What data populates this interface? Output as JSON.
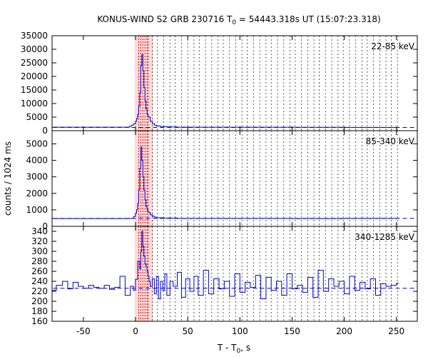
{
  "chart_data": {
    "type": "line",
    "title": {
      "prefix": "KONUS-WIND S2 GRB 230716 T",
      "sub": "0",
      "suffix": " = 54443.318s UT (15:07:23.318)"
    },
    "xlabel": {
      "prefix": "T - T",
      "sub": "0",
      "suffix": ", s"
    },
    "ylabel": "counts / 1024 ms",
    "xlim": [
      -80,
      270
    ],
    "xticks": [
      -50,
      0,
      50,
      100,
      150,
      200,
      250
    ],
    "xtick_labels": [
      "-50",
      "0",
      "50",
      "100",
      "150",
      "200",
      "250"
    ],
    "highlight": {
      "start": -1,
      "end": 17,
      "color": "#f9dddd"
    },
    "red_markers": [
      3,
      5,
      7,
      9,
      11,
      12
    ],
    "grid_lines": [
      16,
      21,
      27,
      33,
      38,
      44,
      50,
      56,
      61,
      67,
      73,
      79,
      84,
      90,
      96,
      102,
      107,
      113,
      119,
      125,
      130,
      136,
      142,
      148,
      153,
      159,
      165,
      171,
      176,
      182,
      188,
      194,
      199,
      205,
      211,
      217,
      222,
      228,
      234,
      240,
      245,
      251
    ],
    "line_color": "#0000cc",
    "background_color": "#ff0000",
    "panels": [
      {
        "label": "22-85 keV",
        "ylim": [
          0,
          35000
        ],
        "yticks": [
          0,
          5000,
          10000,
          15000,
          20000,
          25000,
          30000,
          35000
        ],
        "ytick_labels": [
          "0",
          "5000",
          "10000",
          "15000",
          "20000",
          "25000",
          "30000",
          "35000"
        ],
        "background": 1200,
        "x": [
          -80,
          -10,
          -6,
          -4,
          -2,
          0,
          1,
          2,
          3,
          4,
          5,
          6,
          7,
          8,
          9,
          10,
          11,
          12,
          14,
          16,
          18,
          20,
          24,
          30,
          40,
          60,
          100,
          150,
          200,
          250
        ],
        "counts": [
          1300,
          1300,
          1600,
          2000,
          2500,
          3500,
          4500,
          6000,
          9000,
          14000,
          24000,
          28000,
          22000,
          16000,
          11000,
          8000,
          6000,
          5000,
          3500,
          2600,
          2000,
          1700,
          1500,
          1400,
          1300,
          1300,
          1300,
          1250,
          1200,
          1200
        ]
      },
      {
        "label": "85-340 keV",
        "ylim": [
          0,
          5800
        ],
        "yticks": [
          0,
          1000,
          2000,
          3000,
          4000,
          5000
        ],
        "ytick_labels": [
          "0",
          "1000",
          "2000",
          "3000",
          "4000",
          "5000"
        ],
        "background": 480,
        "x": [
          -80,
          -6,
          -2,
          0,
          1,
          2,
          3,
          4,
          5,
          6,
          7,
          8,
          9,
          10,
          11,
          12,
          14,
          16,
          18,
          20,
          26,
          40,
          100,
          150,
          200,
          250
        ],
        "counts": [
          470,
          480,
          600,
          800,
          1000,
          1400,
          2200,
          3500,
          4800,
          4000,
          3000,
          2200,
          1600,
          1200,
          1000,
          850,
          700,
          620,
          560,
          520,
          500,
          480,
          480,
          470,
          480,
          480
        ]
      },
      {
        "label": "340-1285 keV",
        "ylim": [
          160,
          350
        ],
        "yticks": [
          160,
          180,
          200,
          220,
          240,
          260,
          280,
          300,
          320,
          340
        ],
        "ytick_labels": [
          "160",
          "180",
          "200",
          "220",
          "240",
          "260",
          "280",
          "300",
          "320",
          "340"
        ],
        "background": 226,
        "x": [
          -80,
          -76,
          -70,
          -65,
          -60,
          -55,
          -50,
          -45,
          -40,
          -35,
          -30,
          -25,
          -20,
          -15,
          -10,
          -5,
          -2,
          0,
          2,
          4,
          5,
          6,
          7,
          8,
          9,
          10,
          11,
          12,
          13,
          14,
          16,
          18,
          20,
          22,
          24,
          26,
          28,
          30,
          33,
          36,
          40,
          44,
          48,
          52,
          56,
          60,
          65,
          70,
          75,
          80,
          85,
          90,
          95,
          100,
          105,
          110,
          115,
          120,
          125,
          130,
          135,
          140,
          145,
          150,
          155,
          160,
          165,
          170,
          175,
          180,
          185,
          190,
          195,
          200,
          205,
          210,
          215,
          220,
          225,
          230,
          235,
          240,
          245,
          250
        ],
        "counts": [
          222,
          232,
          240,
          225,
          238,
          230,
          226,
          232,
          228,
          226,
          232,
          224,
          228,
          250,
          212,
          230,
          222,
          244,
          280,
          265,
          300,
          340,
          310,
          290,
          275,
          270,
          260,
          250,
          240,
          230,
          245,
          215,
          250,
          205,
          240,
          222,
          255,
          212,
          240,
          230,
          258,
          208,
          245,
          220,
          250,
          212,
          262,
          215,
          245,
          225,
          240,
          210,
          255,
          218,
          238,
          228,
          252,
          205,
          248,
          222,
          240,
          212,
          255,
          225,
          232,
          218,
          248,
          208,
          262,
          220,
          245,
          230,
          240,
          215,
          250,
          222,
          238,
          225,
          245,
          212,
          235,
          230,
          232,
          236
        ]
      }
    ]
  }
}
